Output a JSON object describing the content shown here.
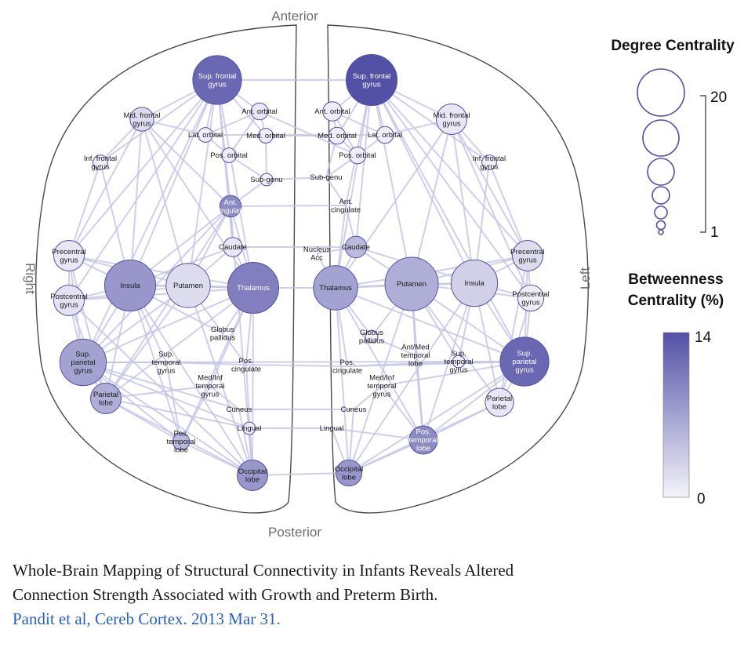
{
  "orientation": {
    "top": "Anterior",
    "bottom": "Posterior",
    "left_side": "Right",
    "right_side": "Left"
  },
  "legend": {
    "degree_title": "Degree Centrality",
    "degree_max": "20",
    "degree_min": "1",
    "betweenness_title_line1": "Betweenness",
    "betweenness_title_line2": "Centrality (%)",
    "betweenness_max": "14",
    "betweenness_min": "0"
  },
  "colors": {
    "edge": "#c3c3e6",
    "node_dark": "#5351a6",
    "node_light": "#f4f3fb",
    "node_stroke": "#5350a6",
    "outline": "#4a4a4a"
  },
  "nodes": [
    {
      "id": "R_supfront",
      "lines": [
        "Sup. frontal",
        "gyrus"
      ],
      "degree": 18,
      "betweenness": 12,
      "hemi": "R"
    },
    {
      "id": "R_midfront",
      "lines": [
        "Mid. frontal",
        "gyrus"
      ],
      "degree": 7,
      "betweenness": 2,
      "hemi": "R"
    },
    {
      "id": "R_antorb",
      "lines": [
        "Ant. orbital"
      ],
      "degree": 4,
      "betweenness": 1,
      "hemi": "R"
    },
    {
      "id": "R_latorb",
      "lines": [
        "Lat. orbital"
      ],
      "degree": 3,
      "betweenness": 0.5,
      "hemi": "R"
    },
    {
      "id": "R_medorb",
      "lines": [
        "Med. orbital"
      ],
      "degree": 3,
      "betweenness": 0.5,
      "hemi": "R"
    },
    {
      "id": "R_posorb",
      "lines": [
        "Pos. orbital"
      ],
      "degree": 3,
      "betweenness": 0.5,
      "hemi": "R"
    },
    {
      "id": "R_infront",
      "lines": [
        "Inf. frontal",
        "gyrus"
      ],
      "degree": 3,
      "betweenness": 0.5,
      "hemi": "R"
    },
    {
      "id": "R_subgenu",
      "lines": [
        "Sub-genu"
      ],
      "degree": 2,
      "betweenness": 0.3,
      "hemi": "R"
    },
    {
      "id": "R_antcing",
      "lines": [
        "Ant.",
        "cingulate"
      ],
      "degree": 6,
      "betweenness": 9,
      "hemi": "R"
    },
    {
      "id": "R_caudate",
      "lines": [
        "Caudate"
      ],
      "degree": 5,
      "betweenness": 1,
      "hemi": "R"
    },
    {
      "id": "R_precentral",
      "lines": [
        "Precentral",
        "gyrus"
      ],
      "degree": 10,
      "betweenness": 1,
      "hemi": "R"
    },
    {
      "id": "R_postcentral",
      "lines": [
        "Postcentral",
        "gyrus"
      ],
      "degree": 10,
      "betweenness": 1.5,
      "hemi": "R"
    },
    {
      "id": "R_insula",
      "lines": [
        "Insula"
      ],
      "degree": 19,
      "betweenness": 8,
      "hemi": "R"
    },
    {
      "id": "R_putamen",
      "lines": [
        "Putamen"
      ],
      "degree": 16,
      "betweenness": 2,
      "hemi": "R"
    },
    {
      "id": "R_thalamus",
      "lines": [
        "Thalamus"
      ],
      "degree": 19,
      "betweenness": 10,
      "hemi": "R"
    },
    {
      "id": "R_globus",
      "lines": [
        "Globus",
        "pallidus"
      ],
      "degree": 1,
      "betweenness": 0,
      "hemi": "R"
    },
    {
      "id": "R_supparietal",
      "lines": [
        "Sup.",
        "parietal",
        "gyrus"
      ],
      "degree": 17,
      "betweenness": 7,
      "hemi": "R"
    },
    {
      "id": "R_suptemporal",
      "lines": [
        "Sup.",
        "temporal",
        "gyrus"
      ],
      "degree": 1,
      "betweenness": 0,
      "hemi": "R"
    },
    {
      "id": "R_poscing",
      "lines": [
        "Pos.",
        "cingulate"
      ],
      "degree": 1,
      "betweenness": 0,
      "hemi": "R"
    },
    {
      "id": "R_medinftemp",
      "lines": [
        "Med/Inf",
        "temporal",
        "gyrus"
      ],
      "degree": 1,
      "betweenness": 0,
      "hemi": "R"
    },
    {
      "id": "R_parietal",
      "lines": [
        "Parietal",
        "lobe"
      ],
      "degree": 10,
      "betweenness": 6,
      "hemi": "R"
    },
    {
      "id": "R_cuneus",
      "lines": [
        "Cuneus"
      ],
      "degree": 1,
      "betweenness": 0,
      "hemi": "R"
    },
    {
      "id": "R_lingual",
      "lines": [
        "Lingual"
      ],
      "degree": 2,
      "betweenness": 0.5,
      "hemi": "R"
    },
    {
      "id": "R_postemporal",
      "lines": [
        "Pos.",
        "temporal",
        "lobe"
      ],
      "degree": 4,
      "betweenness": 5,
      "hemi": "R"
    },
    {
      "id": "R_occipital",
      "lines": [
        "Occipital",
        "lobe"
      ],
      "degree": 10,
      "betweenness": 8,
      "hemi": "R"
    },
    {
      "id": "L_supfront",
      "lines": [
        "Sup. frontal",
        "gyrus"
      ],
      "degree": 19,
      "betweenness": 14,
      "hemi": "L"
    },
    {
      "id": "L_midfront",
      "lines": [
        "Mid. frontal",
        "gyrus"
      ],
      "degree": 10,
      "betweenness": 1,
      "hemi": "L"
    },
    {
      "id": "L_antorb",
      "lines": [
        "Ant. orbital"
      ],
      "degree": 5,
      "betweenness": 0.5,
      "hemi": "L"
    },
    {
      "id": "L_medorb",
      "lines": [
        "Med. orbital"
      ],
      "degree": 4,
      "betweenness": 0.5,
      "hemi": "L"
    },
    {
      "id": "L_latorb",
      "lines": [
        "Lat. orbital"
      ],
      "degree": 4,
      "betweenness": 0.5,
      "hemi": "L"
    },
    {
      "id": "L_posorb",
      "lines": [
        "Pos. orbital"
      ],
      "degree": 4,
      "betweenness": 0.5,
      "hemi": "L"
    },
    {
      "id": "L_infront",
      "lines": [
        "Inf. frontal",
        "gyrus"
      ],
      "degree": 3,
      "betweenness": 0.5,
      "hemi": "L"
    },
    {
      "id": "L_subgenu",
      "lines": [
        "Sub-genu"
      ],
      "degree": 1,
      "betweenness": 0,
      "hemi": "L"
    },
    {
      "id": "L_antcing",
      "lines": [
        "Ant.",
        "cingulate"
      ],
      "degree": 1,
      "betweenness": 0,
      "hemi": "L"
    },
    {
      "id": "L_nucleus",
      "lines": [
        "Nucleus",
        "Acc"
      ],
      "degree": 1,
      "betweenness": 0,
      "hemi": "L"
    },
    {
      "id": "L_caudate",
      "lines": [
        "Caudate"
      ],
      "degree": 6,
      "betweenness": 5,
      "hemi": "L"
    },
    {
      "id": "L_precentral",
      "lines": [
        "Precentral",
        "gyrus"
      ],
      "degree": 10,
      "betweenness": 2,
      "hemi": "L"
    },
    {
      "id": "L_postcentral",
      "lines": [
        "Postcentral",
        "gyrus"
      ],
      "degree": 8,
      "betweenness": 0.5,
      "hemi": "L"
    },
    {
      "id": "L_thalamus",
      "lines": [
        "Thalamus"
      ],
      "degree": 16,
      "betweenness": 7,
      "hemi": "L"
    },
    {
      "id": "L_putamen",
      "lines": [
        "Putamen"
      ],
      "degree": 20,
      "betweenness": 6,
      "hemi": "L"
    },
    {
      "id": "L_insula",
      "lines": [
        "Insula"
      ],
      "degree": 17,
      "betweenness": 3,
      "hemi": "L"
    },
    {
      "id": "L_globus",
      "lines": [
        "Globus",
        "pallidus"
      ],
      "degree": 2,
      "betweenness": 0.2,
      "hemi": "L"
    },
    {
      "id": "L_antmedtemp",
      "lines": [
        "Ant/Med",
        "temporal",
        "lobe"
      ],
      "degree": 1,
      "betweenness": 0,
      "hemi": "L"
    },
    {
      "id": "L_suptemporal",
      "lines": [
        "Sup.",
        "temporal",
        "gyrus"
      ],
      "degree": 2,
      "betweenness": 0.5,
      "hemi": "L"
    },
    {
      "id": "L_supparietal",
      "lines": [
        "Sup.",
        "parietal",
        "gyrus"
      ],
      "degree": 18,
      "betweenness": 12,
      "hemi": "L"
    },
    {
      "id": "L_poscing",
      "lines": [
        "Pos.",
        "cingulate"
      ],
      "degree": 1,
      "betweenness": 0,
      "hemi": "L"
    },
    {
      "id": "L_medinftemp",
      "lines": [
        "Med/Inf",
        "temporal",
        "gyrus"
      ],
      "degree": 1,
      "betweenness": 0,
      "hemi": "L"
    },
    {
      "id": "L_parietal",
      "lines": [
        "Parietal",
        "lobe"
      ],
      "degree": 9,
      "betweenness": 1,
      "hemi": "L"
    },
    {
      "id": "L_cuneus",
      "lines": [
        "Cuneus"
      ],
      "degree": 1,
      "betweenness": 0,
      "hemi": "L"
    },
    {
      "id": "L_lingual",
      "lines": [
        "Lingual"
      ],
      "degree": 1,
      "betweenness": 0,
      "hemi": "L"
    },
    {
      "id": "L_postemporal",
      "lines": [
        "Pos.",
        "temporal",
        "lobe"
      ],
      "degree": 9,
      "betweenness": 9,
      "hemi": "L"
    },
    {
      "id": "L_occipital",
      "lines": [
        "Occipital",
        "lobe"
      ],
      "degree": 8,
      "betweenness": 8,
      "hemi": "L"
    }
  ],
  "edges": [
    [
      "R_supfront",
      "R_midfront"
    ],
    [
      "R_supfront",
      "R_antorb"
    ],
    [
      "R_supfront",
      "R_latorb"
    ],
    [
      "R_supfront",
      "R_infront"
    ],
    [
      "R_supfront",
      "R_antcing"
    ],
    [
      "R_supfront",
      "R_precentral"
    ],
    [
      "R_supfront",
      "R_insula"
    ],
    [
      "R_supfront",
      "R_putamen"
    ],
    [
      "R_supfront",
      "R_thalamus"
    ],
    [
      "R_supfront",
      "R_caudate"
    ],
    [
      "R_supfront",
      "R_supparietal"
    ],
    [
      "R_supfront",
      "L_supfront"
    ],
    [
      "R_supfront",
      "R_medorb"
    ],
    [
      "R_supfront",
      "R_postcentral"
    ],
    [
      "R_midfront",
      "R_infront"
    ],
    [
      "R_midfront",
      "R_precentral"
    ],
    [
      "R_midfront",
      "R_insula"
    ],
    [
      "R_midfront",
      "R_thalamus"
    ],
    [
      "R_midfront",
      "R_putamen"
    ],
    [
      "R_midfront",
      "R_latorb"
    ],
    [
      "R_midfront",
      "R_antcing"
    ],
    [
      "R_antorb",
      "R_medorb"
    ],
    [
      "R_antorb",
      "R_latorb"
    ],
    [
      "R_antorb",
      "R_posorb"
    ],
    [
      "R_latorb",
      "R_posorb"
    ],
    [
      "R_medorb",
      "R_subgenu"
    ],
    [
      "R_posorb",
      "R_subgenu"
    ],
    [
      "R_subgenu",
      "R_antcing"
    ],
    [
      "R_subgenu",
      "L_subgenu"
    ],
    [
      "R_medorb",
      "L_medorb"
    ],
    [
      "R_antorb",
      "L_posorb"
    ],
    [
      "R_antcing",
      "R_caudate"
    ],
    [
      "R_antcing",
      "R_thalamus"
    ],
    [
      "R_antcing",
      "R_putamen"
    ],
    [
      "R_antcing",
      "R_insula"
    ],
    [
      "R_antcing",
      "L_antcing"
    ],
    [
      "R_antcing",
      "R_supparietal"
    ],
    [
      "R_antcing",
      "R_occipital"
    ],
    [
      "R_antcing",
      "R_parietal"
    ],
    [
      "R_caudate",
      "R_thalamus"
    ],
    [
      "R_caudate",
      "R_putamen"
    ],
    [
      "R_caudate",
      "R_insula"
    ],
    [
      "R_caudate",
      "L_caudate"
    ],
    [
      "R_precentral",
      "R_postcentral"
    ],
    [
      "R_precentral",
      "R_insula"
    ],
    [
      "R_precentral",
      "R_supparietal"
    ],
    [
      "R_precentral",
      "R_thalamus"
    ],
    [
      "R_precentral",
      "R_putamen"
    ],
    [
      "R_precentral",
      "R_parietal"
    ],
    [
      "R_precentral",
      "R_infront"
    ],
    [
      "R_postcentral",
      "R_insula"
    ],
    [
      "R_postcentral",
      "R_supparietal"
    ],
    [
      "R_postcentral",
      "R_thalamus"
    ],
    [
      "R_postcentral",
      "R_parietal"
    ],
    [
      "R_postcentral",
      "R_putamen"
    ],
    [
      "R_postcentral",
      "R_occipital"
    ],
    [
      "R_insula",
      "R_putamen"
    ],
    [
      "R_insula",
      "R_thalamus"
    ],
    [
      "R_insula",
      "R_supparietal"
    ],
    [
      "R_insula",
      "R_occipital"
    ],
    [
      "R_insula",
      "R_parietal"
    ],
    [
      "R_insula",
      "R_postemporal"
    ],
    [
      "R_insula",
      "R_suptemporal"
    ],
    [
      "R_insula",
      "R_globus"
    ],
    [
      "R_insula",
      "R_infront"
    ],
    [
      "R_putamen",
      "R_thalamus"
    ],
    [
      "R_putamen",
      "R_globus"
    ],
    [
      "R_putamen",
      "R_occipital"
    ],
    [
      "R_putamen",
      "R_supparietal"
    ],
    [
      "R_putamen",
      "R_parietal"
    ],
    [
      "R_thalamus",
      "R_globus"
    ],
    [
      "R_thalamus",
      "R_occipital"
    ],
    [
      "R_thalamus",
      "R_supparietal"
    ],
    [
      "R_thalamus",
      "R_parietal"
    ],
    [
      "R_thalamus",
      "L_thalamus"
    ],
    [
      "R_thalamus",
      "R_poscing"
    ],
    [
      "R_thalamus",
      "R_postemporal"
    ],
    [
      "R_thalamus",
      "R_medinftemp"
    ],
    [
      "R_supparietal",
      "R_parietal"
    ],
    [
      "R_supparietal",
      "R_occipital"
    ],
    [
      "R_supparietal",
      "R_postemporal"
    ],
    [
      "R_supparietal",
      "R_suptemporal"
    ],
    [
      "R_supparietal",
      "R_lingual"
    ],
    [
      "R_supparietal",
      "L_supparietal"
    ],
    [
      "R_supparietal",
      "R_cuneus"
    ],
    [
      "R_parietal",
      "R_occipital"
    ],
    [
      "R_parietal",
      "R_postemporal"
    ],
    [
      "R_parietal",
      "R_lingual"
    ],
    [
      "R_parietal",
      "R_medinftemp"
    ],
    [
      "R_postemporal",
      "R_occipital"
    ],
    [
      "R_postemporal",
      "R_medinftemp"
    ],
    [
      "R_postemporal",
      "R_suptemporal"
    ],
    [
      "R_occipital",
      "R_lingual"
    ],
    [
      "R_occipital",
      "R_cuneus"
    ],
    [
      "R_occipital",
      "L_occipital"
    ],
    [
      "R_occipital",
      "R_poscing"
    ],
    [
      "R_lingual",
      "L_lingual"
    ],
    [
      "R_cuneus",
      "L_cuneus"
    ],
    [
      "R_poscing",
      "L_poscing"
    ],
    [
      "R_suptemporal",
      "R_poscing"
    ],
    [
      "L_supfront",
      "L_midfront"
    ],
    [
      "L_supfront",
      "L_antorb"
    ],
    [
      "L_supfront",
      "L_latorb"
    ],
    [
      "L_supfront",
      "L_infront"
    ],
    [
      "L_supfront",
      "L_medorb"
    ],
    [
      "L_supfront",
      "L_precentral"
    ],
    [
      "L_supfront",
      "L_insula"
    ],
    [
      "L_supfront",
      "L_putamen"
    ],
    [
      "L_supfront",
      "L_thalamus"
    ],
    [
      "L_supfront",
      "L_caudate"
    ],
    [
      "L_supfront",
      "L_supparietal"
    ],
    [
      "L_supfront",
      "L_postcentral"
    ],
    [
      "L_supfront",
      "L_antcing"
    ],
    [
      "L_midfront",
      "L_infront"
    ],
    [
      "L_midfront",
      "L_precentral"
    ],
    [
      "L_midfront",
      "L_insula"
    ],
    [
      "L_midfront",
      "L_putamen"
    ],
    [
      "L_midfront",
      "L_latorb"
    ],
    [
      "L_midfront",
      "L_thalamus"
    ],
    [
      "L_midfront",
      "L_postcentral"
    ],
    [
      "L_antorb",
      "L_medorb"
    ],
    [
      "L_antorb",
      "L_latorb"
    ],
    [
      "L_antorb",
      "L_posorb"
    ],
    [
      "L_medorb",
      "L_posorb"
    ],
    [
      "L_latorb",
      "L_posorb"
    ],
    [
      "L_posorb",
      "L_subgenu"
    ],
    [
      "L_medorb",
      "L_subgenu"
    ],
    [
      "L_subgenu",
      "L_antcing"
    ],
    [
      "L_antcing",
      "L_caudate"
    ],
    [
      "L_antcing",
      "L_thalamus"
    ],
    [
      "L_nucleus",
      "L_caudate"
    ],
    [
      "L_nucleus",
      "L_thalamus"
    ],
    [
      "L_caudate",
      "L_putamen"
    ],
    [
      "L_caudate",
      "L_thalamus"
    ],
    [
      "L_caudate",
      "L_insula"
    ],
    [
      "L_precentral",
      "L_postcentral"
    ],
    [
      "L_precentral",
      "L_insula"
    ],
    [
      "L_precentral",
      "L_supparietal"
    ],
    [
      "L_precentral",
      "L_putamen"
    ],
    [
      "L_precentral",
      "L_parietal"
    ],
    [
      "L_precentral",
      "L_infront"
    ],
    [
      "L_precentral",
      "L_thalamus"
    ],
    [
      "L_postcentral",
      "L_insula"
    ],
    [
      "L_postcentral",
      "L_supparietal"
    ],
    [
      "L_postcentral",
      "L_putamen"
    ],
    [
      "L_postcentral",
      "L_parietal"
    ],
    [
      "L_thalamus",
      "L_putamen"
    ],
    [
      "L_thalamus",
      "L_insula"
    ],
    [
      "L_thalamus",
      "L_globus"
    ],
    [
      "L_thalamus",
      "L_occipital"
    ],
    [
      "L_thalamus",
      "L_supparietal"
    ],
    [
      "L_thalamus",
      "L_poscing"
    ],
    [
      "L_thalamus",
      "L_postemporal"
    ],
    [
      "L_putamen",
      "L_insula"
    ],
    [
      "L_putamen",
      "L_globus"
    ],
    [
      "L_putamen",
      "L_supparietal"
    ],
    [
      "L_putamen",
      "L_occipital"
    ],
    [
      "L_putamen",
      "L_postemporal"
    ],
    [
      "L_putamen",
      "L_parietal"
    ],
    [
      "L_putamen",
      "L_antmedtemp"
    ],
    [
      "L_putamen",
      "L_suptemporal"
    ],
    [
      "L_insula",
      "L_supparietal"
    ],
    [
      "L_insula",
      "L_suptemporal"
    ],
    [
      "L_insula",
      "L_postemporal"
    ],
    [
      "L_insula",
      "L_parietal"
    ],
    [
      "L_insula",
      "L_occipital"
    ],
    [
      "L_insula",
      "L_infront"
    ],
    [
      "L_supparietal",
      "L_parietal"
    ],
    [
      "L_supparietal",
      "L_suptemporal"
    ],
    [
      "L_supparietal",
      "L_postemporal"
    ],
    [
      "L_supparietal",
      "L_occipital"
    ],
    [
      "L_supparietal",
      "L_poscing"
    ],
    [
      "L_supparietal",
      "L_medinftemp"
    ],
    [
      "L_parietal",
      "L_postemporal"
    ],
    [
      "L_parietal",
      "L_occipital"
    ],
    [
      "L_postemporal",
      "L_occipital"
    ],
    [
      "L_postemporal",
      "L_medinftemp"
    ],
    [
      "L_postemporal",
      "L_antmedtemp"
    ],
    [
      "L_postemporal",
      "L_lingual"
    ],
    [
      "L_occipital",
      "L_lingual"
    ],
    [
      "L_occipital",
      "L_cuneus"
    ],
    [
      "L_globus",
      "L_antmedtemp"
    ],
    [
      "L_poscing",
      "L_suptemporal"
    ],
    [
      "L_medinftemp",
      "L_cuneus"
    ],
    [
      "R_globus",
      "R_poscing"
    ],
    [
      "R_medinftemp",
      "R_cuneus"
    ],
    [
      "R_latorb",
      "L_latorb"
    ]
  ],
  "caption": {
    "title_line1": "Whole-Brain Mapping of Structural Connectivity in Infants Reveals Altered",
    "title_line2": "Connection Strength Associated with Growth and Preterm Birth.",
    "citation": "Pandit et al, Cereb Cortex. 2013 Mar 31."
  }
}
